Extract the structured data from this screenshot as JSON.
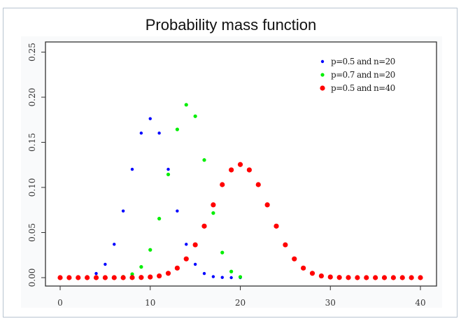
{
  "chart_data": {
    "type": "scatter",
    "title": "Probability mass function",
    "xlabel": "",
    "ylabel": "",
    "xlim": [
      -1.5,
      41.5
    ],
    "ylim": [
      -0.009,
      0.262
    ],
    "xticks": [
      "0",
      "10",
      "20",
      "30",
      "40"
    ],
    "xtick_values": [
      0,
      10,
      20,
      30,
      40
    ],
    "yticks": [
      "0.00",
      "0.05",
      "0.10",
      "0.15",
      "0.20",
      "0.25"
    ],
    "ytick_values": [
      0,
      0.05,
      0.1,
      0.15,
      0.2,
      0.25
    ],
    "grid": false,
    "legend_placement": "top-right",
    "series": [
      {
        "name": "p=0.5 and n=20",
        "color": "#0000ff",
        "x": [
          0,
          1,
          2,
          3,
          4,
          5,
          6,
          7,
          8,
          9,
          10,
          11,
          12,
          13,
          14,
          15,
          16,
          17,
          18,
          19,
          20
        ],
        "y": [
          0.0,
          0.0,
          0.0002,
          0.0011,
          0.0046,
          0.0148,
          0.037,
          0.0739,
          0.1201,
          0.1602,
          0.1762,
          0.1602,
          0.1201,
          0.0739,
          0.037,
          0.0148,
          0.0046,
          0.0011,
          0.0002,
          0.0,
          0.0
        ]
      },
      {
        "name": "p=0.7 and n=20",
        "color": "#00ee00",
        "x": [
          0,
          1,
          2,
          3,
          4,
          5,
          6,
          7,
          8,
          9,
          10,
          11,
          12,
          13,
          14,
          15,
          16,
          17,
          18,
          19,
          20
        ],
        "y": [
          0.0,
          0.0,
          0.0,
          0.0,
          0.0,
          0.0,
          0.0002,
          0.001,
          0.0039,
          0.0119,
          0.0308,
          0.0654,
          0.1144,
          0.1643,
          0.1916,
          0.1789,
          0.1304,
          0.0716,
          0.0278,
          0.0068,
          0.0008
        ]
      },
      {
        "name": "p=0.5 and n=40",
        "color": "#ff0000",
        "x": [
          0,
          1,
          2,
          3,
          4,
          5,
          6,
          7,
          8,
          9,
          10,
          11,
          12,
          13,
          14,
          15,
          16,
          17,
          18,
          19,
          20,
          21,
          22,
          23,
          24,
          25,
          26,
          27,
          28,
          29,
          30,
          31,
          32,
          33,
          34,
          35,
          36,
          37,
          38,
          39,
          40
        ],
        "y": [
          0,
          0,
          0,
          0,
          0,
          0,
          0,
          0.0,
          0.0001,
          0.0002,
          0.0007,
          0.0019,
          0.0048,
          0.0106,
          0.0208,
          0.0364,
          0.0571,
          0.0807,
          0.1031,
          0.1194,
          0.1254,
          0.1194,
          0.1031,
          0.0807,
          0.0571,
          0.0364,
          0.0208,
          0.0106,
          0.0048,
          0.0019,
          0.0007,
          0.0002,
          0.0001,
          0.0,
          0,
          0,
          0,
          0,
          0,
          0,
          0
        ]
      }
    ]
  }
}
